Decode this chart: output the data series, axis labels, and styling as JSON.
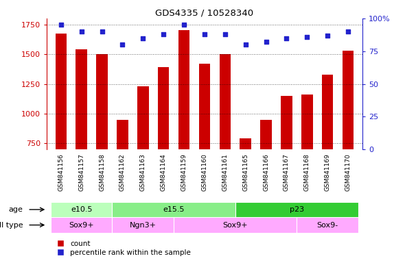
{
  "title": "GDS4335 / 10528340",
  "samples": [
    "GSM841156",
    "GSM841157",
    "GSM841158",
    "GSM841162",
    "GSM841163",
    "GSM841164",
    "GSM841159",
    "GSM841160",
    "GSM841161",
    "GSM841165",
    "GSM841166",
    "GSM841167",
    "GSM841168",
    "GSM841169",
    "GSM841170"
  ],
  "counts": [
    1670,
    1540,
    1500,
    950,
    1230,
    1390,
    1700,
    1420,
    1500,
    790,
    950,
    1150,
    1160,
    1330,
    1530
  ],
  "percentiles": [
    95,
    90,
    90,
    80,
    85,
    88,
    95,
    88,
    88,
    80,
    82,
    85,
    86,
    87,
    90
  ],
  "ylim_left": [
    700,
    1800
  ],
  "ylim_right": [
    0,
    100
  ],
  "yticks_left": [
    750,
    1000,
    1250,
    1500,
    1750
  ],
  "yticks_right": [
    0,
    25,
    50,
    75,
    100
  ],
  "bar_color": "#cc0000",
  "dot_color": "#2222cc",
  "age_groups": [
    {
      "label": "e10.5",
      "start": 0,
      "end": 3,
      "color": "#bbffbb"
    },
    {
      "label": "e15.5",
      "start": 3,
      "end": 9,
      "color": "#88ee88"
    },
    {
      "label": "p23",
      "start": 9,
      "end": 15,
      "color": "#33cc33"
    }
  ],
  "cell_type_groups": [
    {
      "label": "Sox9+",
      "start": 0,
      "end": 3,
      "color": "#ffaaff"
    },
    {
      "label": "Ngn3+",
      "start": 3,
      "end": 6,
      "color": "#ffaaff"
    },
    {
      "label": "Sox9+",
      "start": 6,
      "end": 12,
      "color": "#ffaaff"
    },
    {
      "label": "Sox9-",
      "start": 12,
      "end": 15,
      "color": "#ffaaff"
    }
  ],
  "xtick_bg": "#d8d8d8",
  "bar_bottom": 700
}
